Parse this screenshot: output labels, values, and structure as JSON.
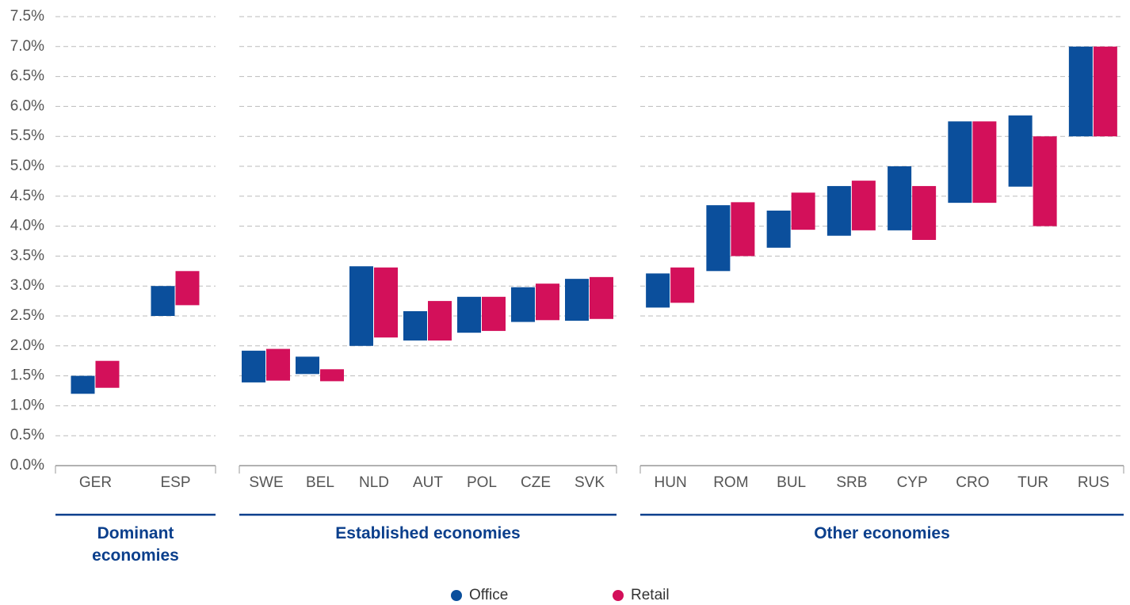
{
  "chart_data": {
    "type": "range_bar",
    "groups": [
      {
        "label": "Dominant economies",
        "categories": [
          "GER",
          "ESP"
        ]
      },
      {
        "label": "Established economies",
        "categories": [
          "SWE",
          "BEL",
          "NLD",
          "AUT",
          "POL",
          "CZE",
          "SVK"
        ]
      },
      {
        "label": "Other economies",
        "categories": [
          "HUN",
          "ROM",
          "BUL",
          "SRB",
          "CYP",
          "CRO",
          "TUR",
          "RUS"
        ]
      }
    ],
    "series": [
      {
        "name": "Office",
        "color": "#0b4f9c",
        "values": [
          [
            1.2,
            1.5
          ],
          [
            2.5,
            3.0
          ],
          [
            1.39,
            1.92
          ],
          [
            1.53,
            1.82
          ],
          [
            2.0,
            3.33
          ],
          [
            2.09,
            2.58
          ],
          [
            2.22,
            2.82
          ],
          [
            2.4,
            2.98
          ],
          [
            2.42,
            3.12
          ],
          [
            2.64,
            3.21
          ],
          [
            3.25,
            4.35
          ],
          [
            3.64,
            4.26
          ],
          [
            3.84,
            4.67
          ],
          [
            3.93,
            5.0
          ],
          [
            4.39,
            5.75
          ],
          [
            4.66,
            5.85
          ],
          [
            5.5,
            7.0
          ]
        ]
      },
      {
        "name": "Retail",
        "color": "#d3105a",
        "values": [
          [
            1.3,
            1.75
          ],
          [
            2.68,
            3.25
          ],
          [
            1.42,
            1.95
          ],
          [
            1.41,
            1.61
          ],
          [
            2.14,
            3.31
          ],
          [
            2.09,
            2.75
          ],
          [
            2.25,
            2.82
          ],
          [
            2.43,
            3.04
          ],
          [
            2.45,
            3.15
          ],
          [
            2.72,
            3.31
          ],
          [
            3.5,
            4.4
          ],
          [
            3.94,
            4.56
          ],
          [
            3.93,
            4.76
          ],
          [
            3.77,
            4.67
          ],
          [
            4.39,
            5.75
          ],
          [
            4.0,
            5.5
          ],
          [
            5.5,
            7.0
          ]
        ]
      }
    ],
    "ylim": [
      0,
      7.5
    ],
    "yticks": [
      {
        "value": 0,
        "label": "0.0%"
      },
      {
        "value": 0.5,
        "label": "0.5%"
      },
      {
        "value": 1,
        "label": "1.0%"
      },
      {
        "value": 1.5,
        "label": "1.5%"
      },
      {
        "value": 2,
        "label": "2.0%"
      },
      {
        "value": 2.5,
        "label": "2.5%"
      },
      {
        "value": 3,
        "label": "3.0%"
      },
      {
        "value": 3.5,
        "label": "3.5%"
      },
      {
        "value": 4,
        "label": "4.0%"
      },
      {
        "value": 4.5,
        "label": "4.5%"
      },
      {
        "value": 5,
        "label": "5.0%"
      },
      {
        "value": 5.5,
        "label": "5.5%"
      },
      {
        "value": 6,
        "label": "6.0%"
      },
      {
        "value": 6.5,
        "label": "6.5%"
      },
      {
        "value": 7,
        "label": "7.0%"
      },
      {
        "value": 7.5,
        "label": "7.5%"
      }
    ],
    "grid": true,
    "legend": "bottom"
  }
}
